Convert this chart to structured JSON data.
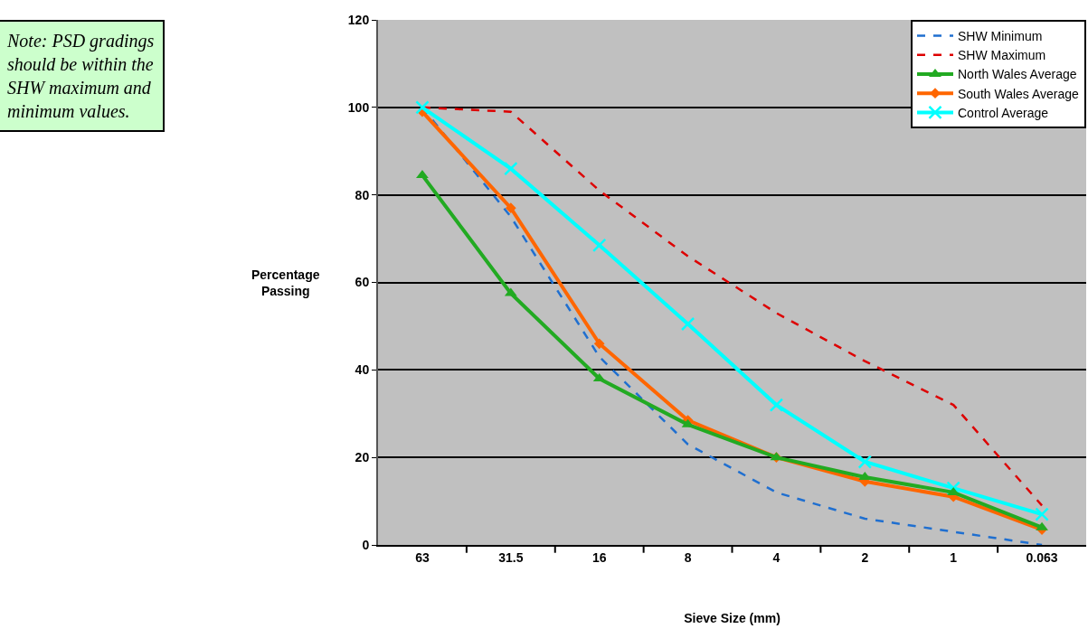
{
  "chart_data": {
    "type": "line",
    "xlabel": "Sieve Size (mm)",
    "ylabel": "Percentage\nPassing",
    "categories": [
      "63",
      "31.5",
      "16",
      "8",
      "4",
      "2",
      "1",
      "0.063"
    ],
    "series": [
      {
        "name": "SHW Minimum",
        "color": "#1f6fd0",
        "line_style": "dashed",
        "marker": "none",
        "values": [
          100,
          75,
          43,
          23,
          12,
          6,
          3,
          0
        ]
      },
      {
        "name": "SHW Maximum",
        "color": "#dd0000",
        "line_style": "dashed",
        "marker": "none",
        "values": [
          100,
          99,
          81,
          66,
          53,
          42,
          32,
          9
        ]
      },
      {
        "name": "North Wales Average",
        "color": "#22aa22",
        "line_style": "solid",
        "marker": "triangle",
        "values": [
          84.5,
          57.5,
          38,
          27.5,
          20,
          15.5,
          12,
          4
        ]
      },
      {
        "name": "South Wales Average",
        "color": "#ff6600",
        "line_style": "solid",
        "marker": "diamond",
        "values": [
          99,
          77,
          46,
          28.5,
          20,
          14.5,
          11,
          3.5
        ]
      },
      {
        "name": "Control Average",
        "color": "#00ffff",
        "line_style": "solid",
        "marker": "cross",
        "values": [
          100,
          86,
          68.5,
          50.5,
          32,
          19,
          13,
          7
        ]
      }
    ],
    "ylim": [
      0,
      120
    ],
    "yticks": [
      0,
      20,
      40,
      60,
      80,
      100,
      120
    ],
    "grid": "y",
    "legend": "top right",
    "annotations": [
      "Note: PSD gradings should be within the SHW maximum and minimum values."
    ]
  }
}
